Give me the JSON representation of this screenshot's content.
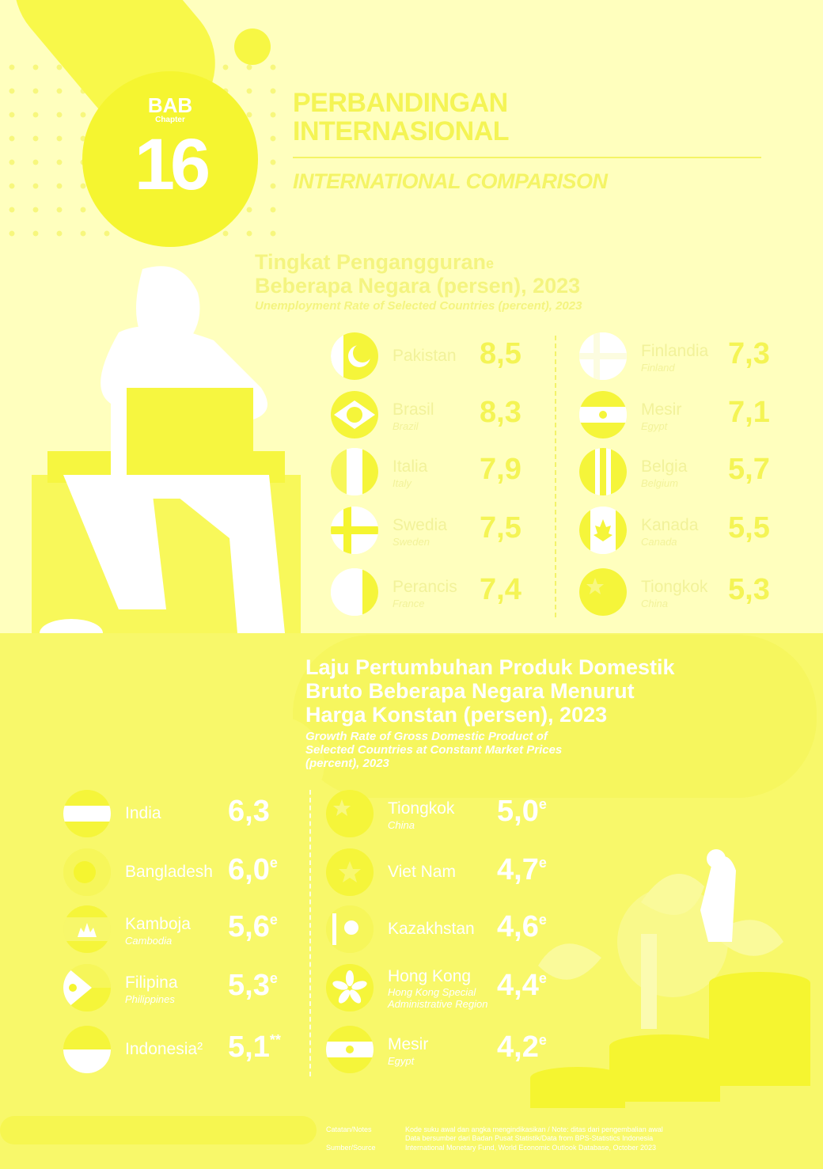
{
  "header": {
    "bab_label": "BAB",
    "bab_sub": "Chapter",
    "bab_number": "16",
    "title_id_line1": "PERBANDINGAN",
    "title_id_line2": "INTERNASIONAL",
    "title_en": "INTERNATIONAL COMPARISON"
  },
  "unemployment": {
    "title_line1": "Tingkat Pengangguran",
    "title_line1_sup": "e",
    "title_line2": "Beberapa Negara (persen), 2023",
    "subtitle": "Unemployment Rate of Selected Countries (percent), 2023",
    "left": [
      {
        "name": "Pakistan",
        "name_en": "",
        "value": "8,5",
        "flag_icon": "pakistan-flag-icon"
      },
      {
        "name": "Brasil",
        "name_en": "Brazil",
        "value": "8,3",
        "flag_icon": "brazil-flag-icon"
      },
      {
        "name": "Italia",
        "name_en": "Italy",
        "value": "7,9",
        "flag_icon": "italy-flag-icon"
      },
      {
        "name": "Swedia",
        "name_en": "Sweden",
        "value": "7,5",
        "flag_icon": "sweden-flag-icon"
      },
      {
        "name": "Perancis",
        "name_en": "France",
        "value": "7,4",
        "flag_icon": "france-flag-icon"
      }
    ],
    "right": [
      {
        "name": "Finlandia",
        "name_en": "Finland",
        "value": "7,3",
        "flag_icon": "finland-flag-icon"
      },
      {
        "name": "Mesir",
        "name_en": "Egypt",
        "value": "7,1",
        "flag_icon": "egypt-flag-icon"
      },
      {
        "name": "Belgia",
        "name_en": "Belgium",
        "value": "5,7",
        "flag_icon": "belgium-flag-icon"
      },
      {
        "name": "Kanada",
        "name_en": "Canada",
        "value": "5,5",
        "flag_icon": "canada-flag-icon"
      },
      {
        "name": "Tiongkok",
        "name_en": "China",
        "value": "5,3",
        "flag_icon": "china-flag-icon"
      }
    ]
  },
  "gdp": {
    "title_line1": "Laju Pertumbuhan Produk Domestik",
    "title_line2": "Bruto Beberapa Negara Menurut",
    "title_line3": "Harga Konstan (persen), 2023",
    "subtitle_line1": "Growth Rate of Gross Domestic Product of",
    "subtitle_line2": "Selected Countries at Constant Market Prices",
    "subtitle_line3": "(percent), 2023",
    "left": [
      {
        "name": "India",
        "name_en": "",
        "value": "6,3",
        "mark": "",
        "flag_icon": "india-flag-icon"
      },
      {
        "name": "Bangladesh",
        "name_en": "",
        "value": "6,0",
        "mark": "e",
        "flag_icon": "bangladesh-flag-icon"
      },
      {
        "name": "Kamboja",
        "name_en": "Cambodia",
        "value": "5,6",
        "mark": "e",
        "flag_icon": "cambodia-flag-icon"
      },
      {
        "name": "Filipina",
        "name_en": "Philippines",
        "value": "5,3",
        "mark": "e",
        "flag_icon": "philippines-flag-icon"
      },
      {
        "name": "Indonesia²",
        "name_en": "",
        "value": "5,1",
        "mark": "**",
        "flag_icon": "indonesia-flag-icon"
      }
    ],
    "right": [
      {
        "name": "Tiongkok",
        "name_en": "China",
        "value": "5,0",
        "mark": "e",
        "flag_icon": "china-flag-icon"
      },
      {
        "name": "Viet Nam",
        "name_en": "",
        "value": "4,7",
        "mark": "e",
        "flag_icon": "vietnam-flag-icon"
      },
      {
        "name": "Kazakhstan",
        "name_en": "",
        "value": "4,6",
        "mark": "e",
        "flag_icon": "kazakhstan-flag-icon"
      },
      {
        "name": "Hong Kong",
        "name_en": "Hong Kong Special Administrative Region",
        "value": "4,4",
        "mark": "e",
        "flag_icon": "hongkong-flag-icon"
      },
      {
        "name": "Mesir",
        "name_en": "Egypt",
        "value": "4,2",
        "mark": "e",
        "flag_icon": "egypt-flag-icon"
      }
    ]
  },
  "footer": {
    "note_label": "Catatan/Notes",
    "note_line1": "Kode suku awal dan angka mengindikasikan / Note: ditas dari pengembalian awal",
    "note_line2": "Data bersumber dari Badan Pusat Statistik/Data from BPS-Statistics Indonesia",
    "source_label": "Sumber/Source",
    "source_text": "International Monetary Fund, World Economic Outlook Database, October 2023"
  },
  "colors": {
    "background": "#FFFFBE",
    "accent": "#F5F530",
    "panel": "#F8F86A"
  }
}
